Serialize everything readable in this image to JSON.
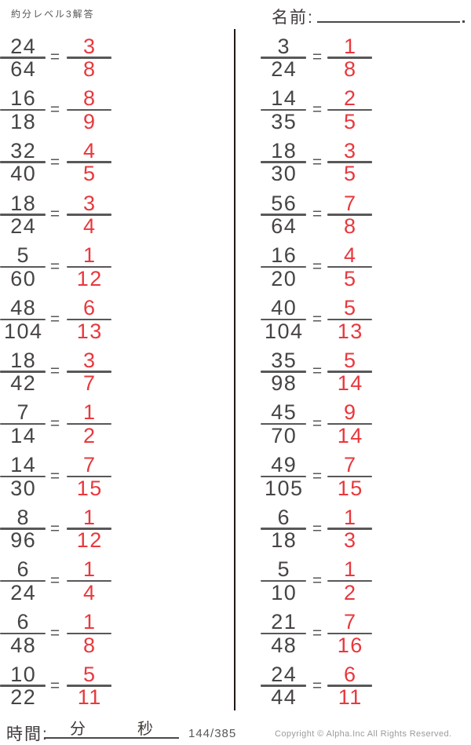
{
  "header": {
    "title": "約分レベル3解答",
    "name_label": "名前:"
  },
  "equals_sign": "=",
  "problems": {
    "left": [
      {
        "numerator": "24",
        "denominator": "64",
        "answer_numerator": "3",
        "answer_denominator": "8"
      },
      {
        "numerator": "16",
        "denominator": "18",
        "answer_numerator": "8",
        "answer_denominator": "9"
      },
      {
        "numerator": "32",
        "denominator": "40",
        "answer_numerator": "4",
        "answer_denominator": "5"
      },
      {
        "numerator": "18",
        "denominator": "24",
        "answer_numerator": "3",
        "answer_denominator": "4"
      },
      {
        "numerator": "5",
        "denominator": "60",
        "answer_numerator": "1",
        "answer_denominator": "12"
      },
      {
        "numerator": "48",
        "denominator": "104",
        "answer_numerator": "6",
        "answer_denominator": "13"
      },
      {
        "numerator": "18",
        "denominator": "42",
        "answer_numerator": "3",
        "answer_denominator": "7"
      },
      {
        "numerator": "7",
        "denominator": "14",
        "answer_numerator": "1",
        "answer_denominator": "2"
      },
      {
        "numerator": "14",
        "denominator": "30",
        "answer_numerator": "7",
        "answer_denominator": "15"
      },
      {
        "numerator": "8",
        "denominator": "96",
        "answer_numerator": "1",
        "answer_denominator": "12"
      },
      {
        "numerator": "6",
        "denominator": "24",
        "answer_numerator": "1",
        "answer_denominator": "4"
      },
      {
        "numerator": "6",
        "denominator": "48",
        "answer_numerator": "1",
        "answer_denominator": "8"
      },
      {
        "numerator": "10",
        "denominator": "22",
        "answer_numerator": "5",
        "answer_denominator": "11"
      }
    ],
    "right": [
      {
        "numerator": "3",
        "denominator": "24",
        "answer_numerator": "1",
        "answer_denominator": "8"
      },
      {
        "numerator": "14",
        "denominator": "35",
        "answer_numerator": "2",
        "answer_denominator": "5"
      },
      {
        "numerator": "18",
        "denominator": "30",
        "answer_numerator": "3",
        "answer_denominator": "5"
      },
      {
        "numerator": "56",
        "denominator": "64",
        "answer_numerator": "7",
        "answer_denominator": "8"
      },
      {
        "numerator": "16",
        "denominator": "20",
        "answer_numerator": "4",
        "answer_denominator": "5"
      },
      {
        "numerator": "40",
        "denominator": "104",
        "answer_numerator": "5",
        "answer_denominator": "13"
      },
      {
        "numerator": "35",
        "denominator": "98",
        "answer_numerator": "5",
        "answer_denominator": "14"
      },
      {
        "numerator": "45",
        "denominator": "70",
        "answer_numerator": "9",
        "answer_denominator": "14"
      },
      {
        "numerator": "49",
        "denominator": "105",
        "answer_numerator": "7",
        "answer_denominator": "15"
      },
      {
        "numerator": "6",
        "denominator": "18",
        "answer_numerator": "1",
        "answer_denominator": "3"
      },
      {
        "numerator": "5",
        "denominator": "10",
        "answer_numerator": "1",
        "answer_denominator": "2"
      },
      {
        "numerator": "21",
        "denominator": "48",
        "answer_numerator": "7",
        "answer_denominator": "16"
      },
      {
        "numerator": "24",
        "denominator": "44",
        "answer_numerator": "6",
        "answer_denominator": "11"
      }
    ]
  },
  "footer": {
    "time_label": "時間:",
    "minutes_label": "分",
    "seconds_label": "秒",
    "page_number": "144/385",
    "copyright": "Copyright ©  Alpha.Inc All Rights Reserved."
  },
  "colors": {
    "answer_red": "#e8383d",
    "text_dark": "#474443",
    "fraction_bar": "#595757",
    "divider": "#211915",
    "muted_gray": "#9a9a9a"
  }
}
